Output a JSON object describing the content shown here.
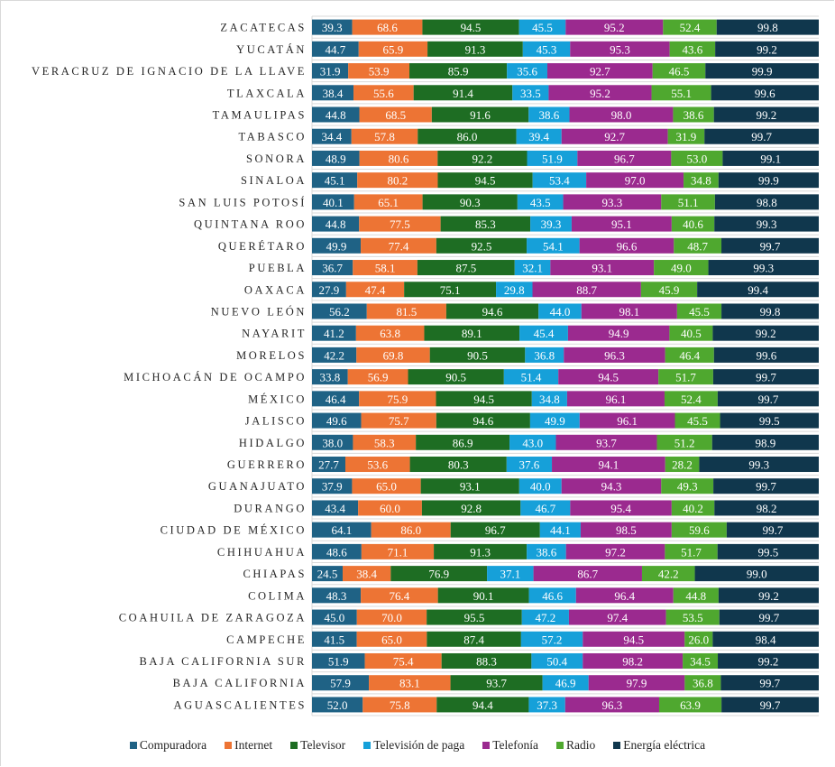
{
  "chart_data": {
    "type": "bar",
    "orientation": "horizontal",
    "stacking": "percent",
    "title": "",
    "xlabel": "",
    "ylabel": "",
    "grid": true,
    "legend_position": "bottom",
    "categories": [
      "ZACATECAS",
      "YUCATÁN",
      "VERACRUZ DE IGNACIO DE LA LLAVE",
      "TLAXCALA",
      "TAMAULIPAS",
      "TABASCO",
      "SONORA",
      "SINALOA",
      "SAN LUIS POTOSÍ",
      "QUINTANA ROO",
      "QUERÉTARO",
      "PUEBLA",
      "OAXACA",
      "NUEVO LEÓN",
      "NAYARIT",
      "MORELOS",
      "MICHOACÁN DE OCAMPO",
      "MÉXICO",
      "JALISCO",
      "HIDALGO",
      "GUERRERO",
      "GUANAJUATO",
      "DURANGO",
      "CIUDAD DE MÉXICO",
      "CHIHUAHUA",
      "CHIAPAS",
      "COLIMA",
      "COAHUILA DE ZARAGOZA",
      "CAMPECHE",
      "BAJA CALIFORNIA SUR",
      "BAJA CALIFORNIA",
      "AGUASCALIENTES"
    ],
    "series": [
      {
        "name": "Compuradora",
        "color": "#1f6285",
        "values": [
          39.3,
          44.7,
          31.9,
          38.4,
          44.8,
          34.4,
          48.9,
          45.1,
          40.1,
          44.8,
          49.9,
          36.7,
          27.9,
          56.2,
          41.2,
          42.2,
          33.8,
          46.4,
          49.6,
          38.0,
          27.7,
          37.9,
          43.4,
          64.1,
          48.6,
          24.5,
          48.3,
          45.0,
          41.5,
          51.9,
          57.9,
          52.0
        ]
      },
      {
        "name": "Internet",
        "color": "#ed7434",
        "values": [
          68.6,
          65.9,
          53.9,
          55.6,
          68.5,
          57.8,
          80.6,
          80.2,
          65.1,
          77.5,
          77.4,
          58.1,
          47.4,
          81.5,
          63.8,
          69.8,
          56.9,
          75.9,
          75.7,
          58.3,
          53.6,
          65.0,
          60.0,
          86.0,
          71.1,
          38.4,
          76.4,
          70.0,
          65.0,
          75.4,
          83.1,
          75.8
        ]
      },
      {
        "name": "Televisor",
        "color": "#1e6d23",
        "values": [
          94.5,
          91.3,
          85.9,
          91.4,
          91.6,
          86.0,
          92.2,
          94.5,
          90.3,
          85.3,
          92.5,
          87.5,
          75.1,
          94.6,
          89.1,
          90.5,
          90.5,
          94.5,
          94.6,
          86.9,
          80.3,
          93.1,
          92.8,
          96.7,
          91.3,
          76.9,
          90.1,
          95.5,
          87.4,
          88.3,
          93.7,
          94.4
        ]
      },
      {
        "name": "Televisión de paga",
        "color": "#16a0d9",
        "values": [
          45.5,
          45.3,
          35.6,
          33.5,
          38.6,
          39.4,
          51.9,
          53.4,
          43.5,
          39.3,
          54.1,
          32.1,
          29.8,
          44.0,
          45.4,
          36.8,
          51.4,
          34.8,
          49.9,
          43.0,
          37.6,
          40.0,
          46.7,
          44.1,
          38.6,
          37.1,
          46.6,
          47.2,
          57.2,
          50.4,
          46.9,
          37.3
        ]
      },
      {
        "name": "Telefonía",
        "color": "#9b2a8f",
        "values": [
          95.2,
          95.3,
          92.7,
          95.2,
          98.0,
          92.7,
          96.7,
          97.0,
          93.3,
          95.1,
          96.6,
          93.1,
          88.7,
          98.1,
          94.9,
          96.3,
          94.5,
          96.1,
          96.1,
          93.7,
          94.1,
          94.3,
          95.4,
          98.5,
          97.2,
          86.7,
          96.4,
          97.4,
          94.5,
          98.2,
          97.9,
          96.3
        ]
      },
      {
        "name": "Radio",
        "color": "#4fa82f",
        "values": [
          52.4,
          43.6,
          46.5,
          55.1,
          38.6,
          31.9,
          53.0,
          34.8,
          51.1,
          40.6,
          48.7,
          49.0,
          45.9,
          45.5,
          40.5,
          46.4,
          51.7,
          52.4,
          45.5,
          51.2,
          28.2,
          49.3,
          40.2,
          59.6,
          51.7,
          42.2,
          44.8,
          53.5,
          26.0,
          34.5,
          36.8,
          63.9
        ]
      },
      {
        "name": "Energía eléctrica",
        "color": "#10374d",
        "values": [
          99.8,
          99.2,
          99.9,
          99.6,
          99.2,
          99.7,
          99.1,
          99.9,
          98.8,
          99.3,
          99.7,
          99.3,
          99.4,
          99.8,
          99.2,
          99.6,
          99.7,
          99.7,
          99.5,
          98.9,
          99.3,
          99.7,
          98.2,
          99.7,
          99.5,
          99.0,
          99.2,
          99.7,
          98.4,
          99.2,
          99.7,
          99.7
        ]
      }
    ]
  }
}
